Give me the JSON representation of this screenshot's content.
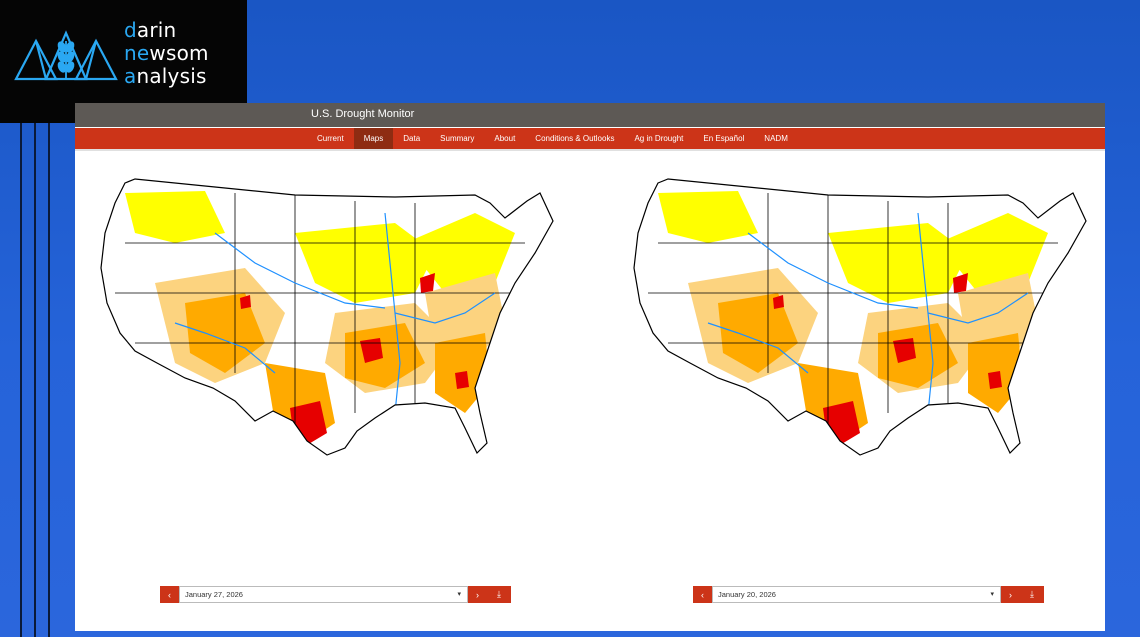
{
  "logo": {
    "line1_first": "d",
    "line1_rest": "arin",
    "line2_first": "n",
    "line2_mid": "e",
    "line2_rest": "wsom",
    "line3_first": "a",
    "line3_rest": "nalysis"
  },
  "app": {
    "title": "U.S. Drought Monitor"
  },
  "nav": {
    "items": [
      "Current",
      "Maps",
      "Data",
      "Summary",
      "About",
      "Conditions & Outlooks",
      "Ag in Drought",
      "En Español",
      "NADM"
    ],
    "active": "Maps"
  },
  "maps": [
    {
      "date": "January 27, 2026",
      "prev_icon": "‹",
      "next_icon": "›",
      "download_icon": "⤓"
    },
    {
      "date": "January 20, 2026",
      "prev_icon": "‹",
      "next_icon": "›",
      "download_icon": "⤓"
    }
  ],
  "colors": {
    "d0": "#ffff00",
    "d1": "#fcd37f",
    "d2": "#ffaa00",
    "d3": "#e60000",
    "d4": "#730000",
    "water": "#1e90ff",
    "nav_bg": "#cc3418",
    "title_bg": "#5d5955"
  },
  "icons": {
    "logo_mark": "wheat-mountain-logo-icon",
    "date_caret": "chevron-down-icon"
  }
}
